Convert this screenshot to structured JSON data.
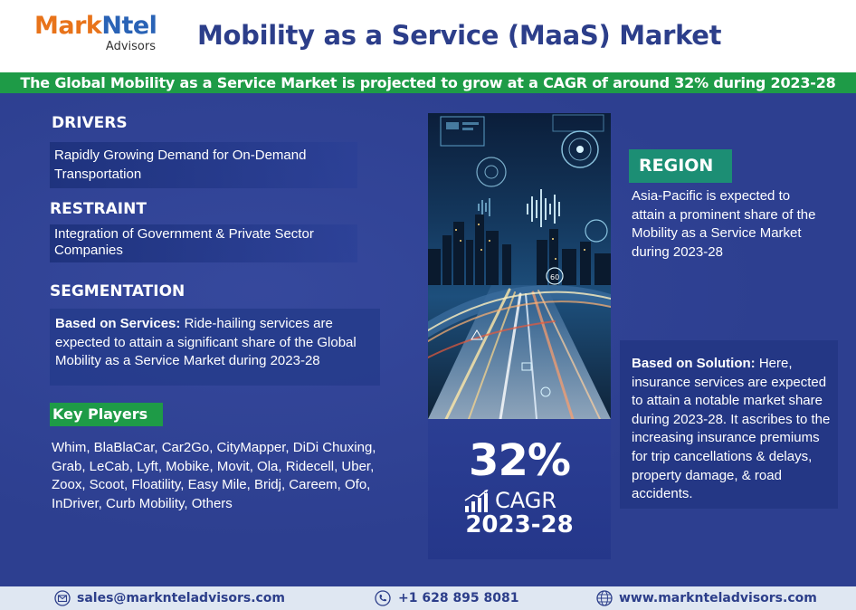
{
  "header": {
    "logo_mark": "Mark",
    "logo_ntel": "Ntel",
    "logo_sub": "Advisors",
    "title": "Mobility as a Service (MaaS) Market"
  },
  "banner": "The Global Mobility as a Service Market is projected to grow at a CAGR of around 32% during 2023-28",
  "drivers": {
    "heading": "DRIVERS",
    "text": "Rapidly Growing Demand for On-Demand Transportation"
  },
  "restraint": {
    "heading": "RESTRAINT",
    "text": "Integration of Government & Private Sector Companies"
  },
  "segmentation": {
    "heading": "SEGMENTATION",
    "bold": "Based on Services:",
    "text": " Ride-hailing services are expected to attain a significant share of the Global Mobility as a Service Market during 2023-28"
  },
  "key_players": {
    "heading": "Key Players",
    "text": "Whim, BlaBlaCar, Car2Go, CityMapper, DiDi Chuxing, Grab, LeCab, Lyft, Mobike, Movit, Ola, Ridecell, Uber, Zoox, Scoot, Floatility, Easy Mile, Bridj, Careem, Ofo, InDriver, Curb Mobility, Others"
  },
  "cagr": {
    "value": "32%",
    "label": "CAGR",
    "years": "2023-28",
    "icon": "bar-chart-growth-icon"
  },
  "photo_badge": "60",
  "region": {
    "heading": "REGION",
    "text": "Asia-Pacific is expected to attain a prominent share of the Mobility as a Service Market during 2023-28"
  },
  "solution": {
    "bold": "Based on Solution:",
    "text": " Here, insurance services are expected to attain a notable market share during 2023-28. It ascribes to the increasing insurance premiums for trip cancellations & delays, property damage, & road accidents."
  },
  "footer": {
    "email": "sales@marknteladvisors.com",
    "phone": "+1 628 895 8081",
    "website": "www.marknteladvisors.com",
    "email_icon": "mail-icon",
    "phone_icon": "phone-icon",
    "web_icon": "globe-icon"
  },
  "colors": {
    "brand_blue": "#2c3e8a",
    "brand_orange": "#e8731a",
    "green": "#1e9b47",
    "teal": "#1c8e74",
    "panel": "#2d3f90"
  }
}
